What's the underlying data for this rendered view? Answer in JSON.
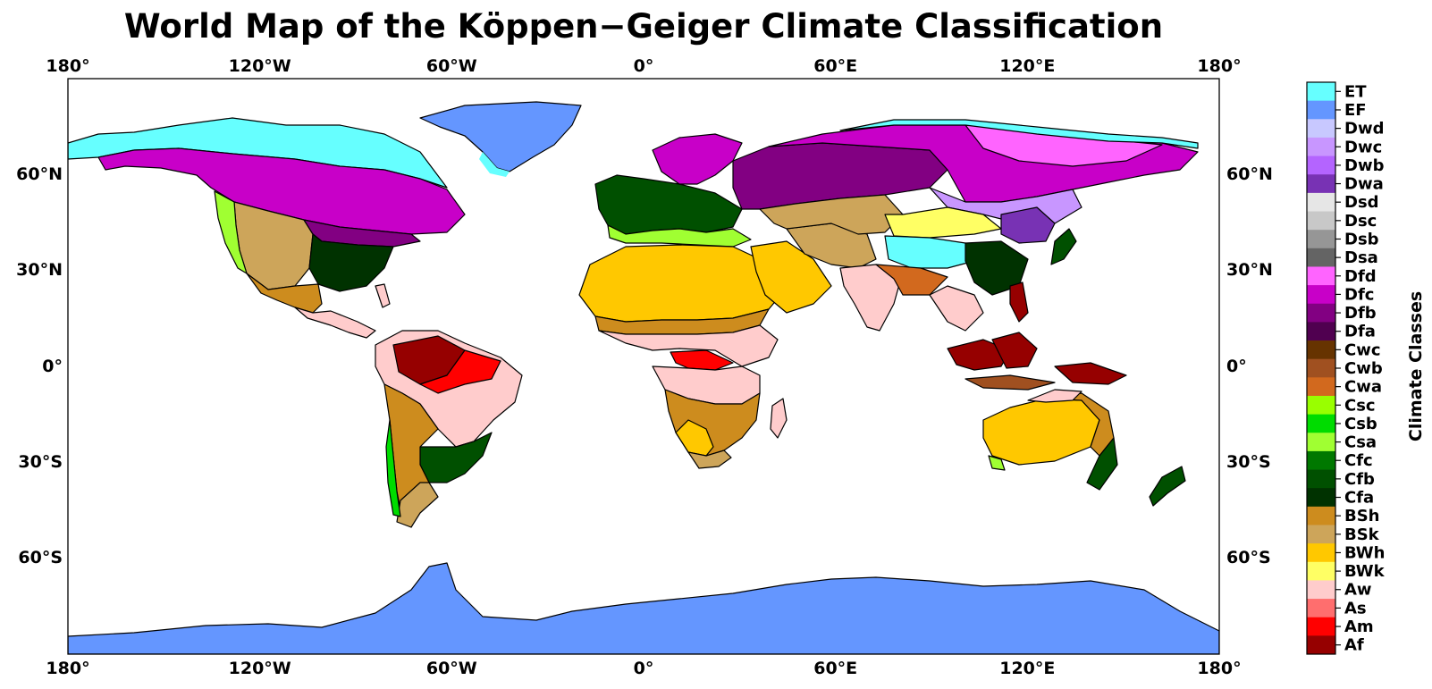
{
  "title": "World Map of the Köppen−Geiger Climate Classification",
  "map": {
    "projection": "PlateCarree",
    "lon_range": [
      -180,
      180
    ],
    "lat_range": [
      -90,
      90
    ],
    "background": "#ffffff",
    "ocean_color": "#ffffff",
    "x_ticks": [
      "180°",
      "120°W",
      "60°W",
      "0°",
      "60°E",
      "120°E",
      "180°"
    ],
    "y_ticks_left": [
      "60°N",
      "30°N",
      "0°",
      "30°S",
      "60°S"
    ],
    "y_ticks_right": [
      "60°N",
      "30°N",
      "0°",
      "30°S",
      "60°S"
    ]
  },
  "colorbar": {
    "title": "Climate Classes",
    "classes": [
      {
        "code": "ET",
        "color": "#66ffff"
      },
      {
        "code": "EF",
        "color": "#6496ff"
      },
      {
        "code": "Dwd",
        "color": "#c8c8ff"
      },
      {
        "code": "Dwc",
        "color": "#c896ff"
      },
      {
        "code": "Dwb",
        "color": "#b464ff"
      },
      {
        "code": "Dwa",
        "color": "#7832b4"
      },
      {
        "code": "Dsd",
        "color": "#e6e6e6"
      },
      {
        "code": "Dsc",
        "color": "#c8c8c8"
      },
      {
        "code": "Dsb",
        "color": "#969696"
      },
      {
        "code": "Dsa",
        "color": "#646464"
      },
      {
        "code": "Dfd",
        "color": "#ff64ff"
      },
      {
        "code": "Dfc",
        "color": "#c800c8"
      },
      {
        "code": "Dfb",
        "color": "#820082"
      },
      {
        "code": "Dfa",
        "color": "#500050"
      },
      {
        "code": "Cwc",
        "color": "#663300"
      },
      {
        "code": "Cwb",
        "color": "#a05020"
      },
      {
        "code": "Cwa",
        "color": "#d2691e"
      },
      {
        "code": "Csc",
        "color": "#99ff00"
      },
      {
        "code": "Csb",
        "color": "#00dc00"
      },
      {
        "code": "Csa",
        "color": "#a0ff32"
      },
      {
        "code": "Cfc",
        "color": "#007800"
      },
      {
        "code": "Cfb",
        "color": "#005000"
      },
      {
        "code": "Cfa",
        "color": "#003200"
      },
      {
        "code": "BSh",
        "color": "#cd8c1e"
      },
      {
        "code": "BSk",
        "color": "#cda55a"
      },
      {
        "code": "BWh",
        "color": "#ffc800"
      },
      {
        "code": "BWk",
        "color": "#ffff64"
      },
      {
        "code": "Aw",
        "color": "#ffcccc"
      },
      {
        "code": "As",
        "color": "#ff6e6e"
      },
      {
        "code": "Am",
        "color": "#ff0000"
      },
      {
        "code": "Af",
        "color": "#960000"
      }
    ]
  }
}
